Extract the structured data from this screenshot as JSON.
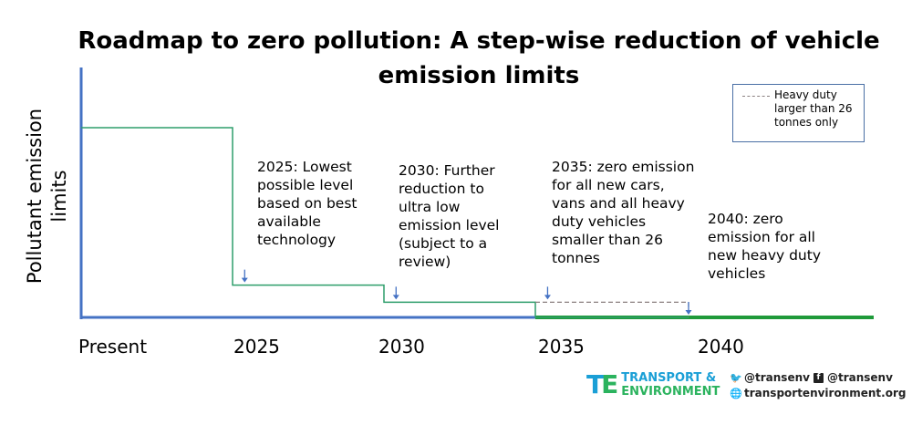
{
  "chart_data": {
    "type": "line",
    "title": "Roadmap to zero pollution:  A step-wise reduction of vehicle emission limits",
    "ylabel": "Pollutant emission limits",
    "xlabel": "",
    "x_ticks": [
      "Present",
      "2025",
      "2030",
      "2035",
      "2040"
    ],
    "series": [
      {
        "name": "",
        "style": "solid",
        "color": "#2e9e6b",
        "points": [
          {
            "x": 2020,
            "y": 1.0
          },
          {
            "x": 2025,
            "y": 0.17
          },
          {
            "x": 2030,
            "y": 0.08
          },
          {
            "x": 2035,
            "y": 0.0
          },
          {
            "x": 2040,
            "y": 0.0
          }
        ]
      },
      {
        "name": "Heavy duty larger than 26 tonnes only",
        "style": "dashed",
        "color": "#8a7f7f",
        "points": [
          {
            "x": 2035,
            "y": 0.08
          },
          {
            "x": 2040,
            "y": 0.0
          }
        ]
      }
    ],
    "annotations": [
      {
        "text": "2025: Lowest possible level based on best available technology",
        "arrow_x": 2025.4
      },
      {
        "text": "2030: Further reduction to ultra low emission level (subject to a review)",
        "arrow_x": 2030.4
      },
      {
        "text": "2035: zero emission for all new cars, vans and all heavy duty vehicles smaller than 26 tonnes",
        "arrow_x": 2035.4
      },
      {
        "text": "2040: zero emission for all new heavy duty vehicles",
        "arrow_x": 2040.4
      }
    ],
    "legend": {
      "position": "top-right",
      "label": "Heavy duty larger than 26 tonnes only"
    },
    "colors": {
      "axis": "#4472c4",
      "step": "#2e9e6b",
      "zero_line": "#1f9a3a",
      "dashed": "#8a7f7f",
      "arrow": "#4472c4"
    },
    "grid": false
  },
  "footer": {
    "brand_line1": "TRANSPORT &",
    "brand_line2": "ENVIRONMENT",
    "logo_mark": "TE",
    "twitter_handle": "@transenv",
    "facebook_handle": "@transenv",
    "website": "transportenvironment.org"
  }
}
